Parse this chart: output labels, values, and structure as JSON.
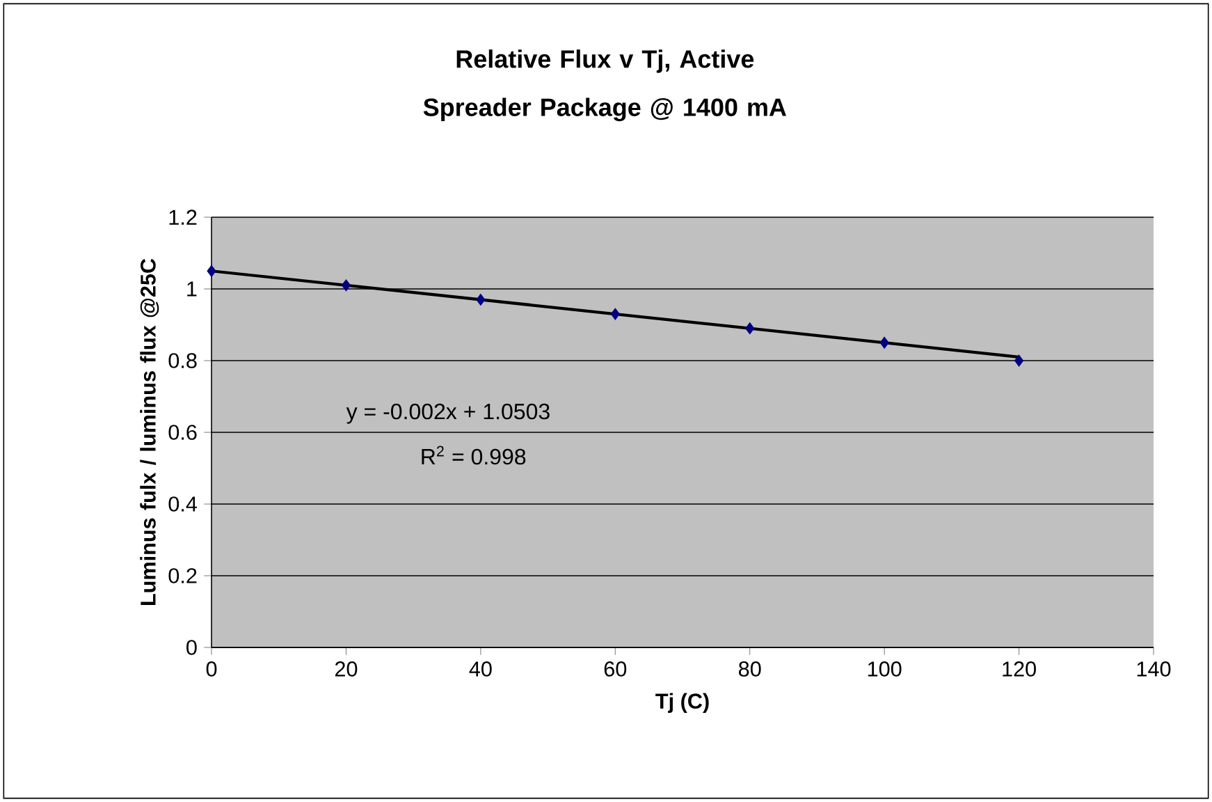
{
  "chart_data": {
    "type": "scatter",
    "title": "Relative Flux v Tj, Active Spreader Package @ 1400 mA",
    "xlabel": "Tj (C)",
    "ylabel": "Luminus fulx / luminus flux @25C",
    "x": [
      0,
      20,
      40,
      60,
      80,
      100,
      120
    ],
    "series": [
      {
        "color": "#000080",
        "marker": "diamond",
        "values": [
          1.05,
          1.01,
          0.97,
          0.93,
          0.89,
          0.85,
          0.8
        ]
      },
      {
        "type": "line",
        "color": "#000000",
        "marker": "none",
        "x": [
          0,
          120
        ],
        "values": [
          1.05,
          0.81
        ]
      }
    ],
    "annotations": [
      "y = -0.002x + 1.0503",
      "R$^{2}$ = 0.998"
    ],
    "xlim": [
      0,
      140
    ],
    "xticks": [
      0,
      20,
      40,
      60,
      80,
      100,
      120,
      140
    ],
    "ylim": [
      0,
      1.2
    ],
    "yticks": [
      0,
      0.2,
      0.4,
      0.6,
      0.8,
      1,
      1.2
    ],
    "grid": "y"
  }
}
